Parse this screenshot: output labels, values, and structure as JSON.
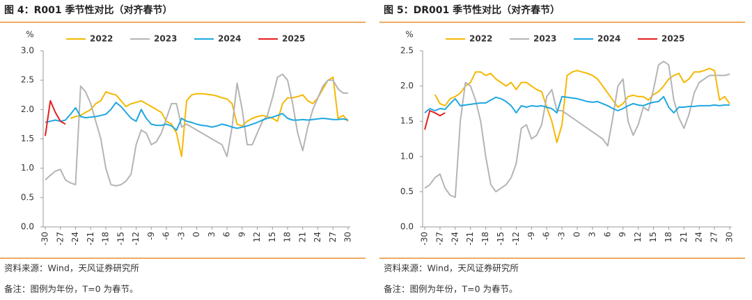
{
  "chart_data": [
    {
      "type": "line",
      "title": "图 4：R001 季节性对比（对齐春节）",
      "y_label": "%",
      "source": "资料来源：Wind，天风证券研究所",
      "note": "备注：图例为年份，T=0 为春节。",
      "x": [
        -30,
        -29,
        -28,
        -27,
        -26,
        -25,
        -24,
        -23,
        -22,
        -21,
        -20,
        -19,
        -18,
        -17,
        -16,
        -15,
        -14,
        -13,
        -12,
        -11,
        -10,
        -9,
        -8,
        -7,
        -6,
        -5,
        -4,
        -3,
        -2,
        -1,
        0,
        1,
        2,
        3,
        4,
        5,
        6,
        7,
        8,
        9,
        10,
        11,
        12,
        13,
        14,
        15,
        16,
        17,
        18,
        19,
        20,
        21,
        22,
        23,
        24,
        25,
        26,
        27,
        28,
        29,
        30
      ],
      "xlim": [
        -30,
        30
      ],
      "xticks": [
        -30,
        -27,
        -24,
        -21,
        -18,
        -15,
        -12,
        -9,
        -6,
        -3,
        0,
        3,
        6,
        9,
        12,
        15,
        18,
        21,
        24,
        27,
        30
      ],
      "ylim": [
        0,
        3
      ],
      "yticks": [
        {
          "value": 0,
          "label": "0.0"
        },
        0.5,
        {
          "value": 1,
          "label": "1.0"
        },
        1.5,
        {
          "value": 2,
          "label": "2.0"
        },
        2.5,
        {
          "value": 3,
          "label": "3.0"
        }
      ],
      "series": [
        {
          "name": "2022",
          "color": "#f5b800",
          "values": [
            null,
            null,
            null,
            null,
            null,
            1.85,
            1.88,
            1.9,
            1.95,
            2.0,
            2.1,
            2.15,
            2.3,
            2.27,
            2.25,
            2.15,
            2.05,
            2.1,
            2.12,
            2.15,
            2.1,
            2.05,
            2.0,
            1.95,
            1.8,
            1.75,
            1.6,
            1.2,
            2.15,
            2.25,
            2.27,
            2.27,
            2.26,
            2.25,
            2.23,
            2.2,
            2.18,
            2.1,
            1.75,
            1.72,
            1.8,
            1.85,
            1.88,
            1.9,
            1.88,
            1.85,
            1.8,
            2.1,
            2.2,
            2.2,
            2.22,
            2.25,
            2.15,
            2.1,
            2.2,
            2.35,
            2.5,
            2.55,
            1.85,
            1.9,
            1.8
          ]
        },
        {
          "name": "2023",
          "color": "#b4b4b4",
          "values": [
            0.8,
            0.88,
            0.95,
            0.98,
            0.8,
            0.75,
            0.72,
            2.4,
            2.3,
            2.1,
            1.8,
            1.5,
            1.0,
            0.72,
            0.7,
            0.72,
            0.78,
            0.9,
            1.4,
            1.65,
            1.6,
            1.4,
            1.45,
            1.6,
            1.85,
            2.1,
            2.1,
            1.7,
            1.75,
            1.7,
            1.65,
            1.6,
            1.55,
            1.5,
            1.45,
            1.4,
            1.2,
            1.7,
            2.45,
            2.0,
            1.4,
            1.4,
            1.6,
            1.8,
            1.9,
            2.2,
            2.55,
            2.6,
            2.5,
            2.1,
            1.6,
            1.3,
            1.7,
            2.0,
            2.2,
            2.4,
            2.5,
            2.5,
            2.35,
            2.28,
            2.28
          ]
        },
        {
          "name": "2024",
          "color": "#1ea7e1",
          "values": [
            1.78,
            1.8,
            1.82,
            1.8,
            1.82,
            1.92,
            2.03,
            1.88,
            1.86,
            1.87,
            1.88,
            1.9,
            1.92,
            2.0,
            2.12,
            2.05,
            1.95,
            1.85,
            1.8,
            2.0,
            1.85,
            1.75,
            1.73,
            1.73,
            1.75,
            1.72,
            1.65,
            1.85,
            1.8,
            1.78,
            1.75,
            1.73,
            1.72,
            1.7,
            1.72,
            1.75,
            1.73,
            1.7,
            1.68,
            1.7,
            1.72,
            1.75,
            1.78,
            1.82,
            1.85,
            1.87,
            1.9,
            1.93,
            1.85,
            1.82,
            1.82,
            1.83,
            1.82,
            1.83,
            1.84,
            1.85,
            1.84,
            1.83,
            1.83,
            1.84,
            1.82
          ]
        },
        {
          "name": "2025",
          "color": "#e41f1f",
          "values": [
            1.55,
            2.15,
            1.95,
            1.8,
            1.75,
            null,
            null,
            null,
            null,
            null,
            null,
            null,
            null,
            null,
            null,
            null,
            null,
            null,
            null,
            null,
            null,
            null,
            null,
            null,
            null,
            null,
            null,
            null,
            null,
            null,
            null,
            null,
            null,
            null,
            null,
            null,
            null,
            null,
            null,
            null,
            null,
            null,
            null,
            null,
            null,
            null,
            null,
            null,
            null,
            null,
            null,
            null,
            null,
            null,
            null,
            null,
            null,
            null,
            null,
            null,
            null
          ]
        }
      ]
    },
    {
      "type": "line",
      "title": "图 5：DR001 季节性对比（对齐春节）",
      "y_label": "%",
      "source": "资料来源：Wind，天风证券研究所",
      "note": "备注：图例为年份，T=0 为春节。",
      "x": [
        -30,
        -29,
        -28,
        -27,
        -26,
        -25,
        -24,
        -23,
        -22,
        -21,
        -20,
        -19,
        -18,
        -17,
        -16,
        -15,
        -14,
        -13,
        -12,
        -11,
        -10,
        -9,
        -8,
        -7,
        -6,
        -5,
        -4,
        -3,
        -2,
        -1,
        0,
        1,
        2,
        3,
        4,
        5,
        6,
        7,
        8,
        9,
        10,
        11,
        12,
        13,
        14,
        15,
        16,
        17,
        18,
        19,
        20,
        21,
        22,
        23,
        24,
        25,
        26,
        27,
        28,
        29,
        30
      ],
      "xlim": [
        -30,
        30
      ],
      "xticks": [
        -30,
        -27,
        -24,
        -21,
        -18,
        -15,
        -12,
        -9,
        -6,
        -3,
        0,
        3,
        6,
        9,
        12,
        15,
        18,
        21,
        24,
        27,
        30
      ],
      "ylim": [
        0,
        2.5
      ],
      "yticks": [
        {
          "value": 0,
          "label": "0.0"
        },
        0.5,
        {
          "value": 1,
          "label": "1.0"
        },
        1.5,
        {
          "value": 2,
          "label": "2.0"
        },
        2.5
      ],
      "series": [
        {
          "name": "2022",
          "color": "#f5b800",
          "values": [
            null,
            null,
            1.88,
            1.75,
            1.72,
            1.82,
            1.85,
            1.9,
            2.0,
            2.05,
            2.2,
            2.2,
            2.15,
            2.18,
            2.1,
            2.05,
            2.0,
            2.05,
            1.95,
            2.05,
            2.05,
            2.0,
            1.95,
            1.92,
            1.7,
            1.5,
            1.2,
            1.45,
            2.15,
            2.2,
            2.22,
            2.2,
            2.18,
            2.15,
            2.1,
            2.0,
            1.9,
            1.8,
            1.7,
            1.75,
            1.85,
            1.87,
            1.85,
            1.85,
            1.8,
            1.88,
            1.92,
            2.0,
            2.1,
            2.15,
            2.18,
            2.05,
            2.1,
            2.2,
            2.2,
            2.22,
            2.25,
            2.22,
            1.8,
            1.85,
            1.75
          ]
        },
        {
          "name": "2023",
          "color": "#b4b4b4",
          "values": [
            0.55,
            0.6,
            0.7,
            0.75,
            0.55,
            0.45,
            0.42,
            1.5,
            2.05,
            2.0,
            1.8,
            1.5,
            1.0,
            0.6,
            0.5,
            0.55,
            0.6,
            0.7,
            0.9,
            1.4,
            1.45,
            1.25,
            1.3,
            1.45,
            1.85,
            1.95,
            1.65,
            1.65,
            1.6,
            1.55,
            1.5,
            1.45,
            1.4,
            1.35,
            1.3,
            1.25,
            1.15,
            1.55,
            2.0,
            2.1,
            1.5,
            1.3,
            1.45,
            1.7,
            1.65,
            1.95,
            2.3,
            2.35,
            2.3,
            1.8,
            1.55,
            1.4,
            1.6,
            1.9,
            2.05,
            2.1,
            2.15,
            2.15,
            2.15,
            2.15,
            2.17
          ]
        },
        {
          "name": "2024",
          "color": "#1ea7e1",
          "values": [
            1.62,
            1.68,
            1.65,
            1.68,
            1.67,
            1.75,
            1.82,
            1.72,
            1.73,
            1.74,
            1.75,
            1.76,
            1.76,
            1.8,
            1.84,
            1.82,
            1.78,
            1.72,
            1.62,
            1.72,
            1.7,
            1.72,
            1.71,
            1.72,
            1.7,
            1.68,
            1.62,
            1.85,
            1.84,
            1.83,
            1.82,
            1.8,
            1.78,
            1.77,
            1.78,
            1.75,
            1.72,
            1.68,
            1.65,
            1.68,
            1.72,
            1.75,
            1.73,
            1.72,
            1.75,
            1.77,
            1.78,
            1.85,
            1.7,
            1.62,
            1.7,
            1.7,
            1.71,
            1.71,
            1.72,
            1.72,
            1.72,
            1.73,
            1.72,
            1.73,
            1.73
          ]
        },
        {
          "name": "2025",
          "color": "#e41f1f",
          "values": [
            1.38,
            1.65,
            1.62,
            1.58,
            1.62,
            null,
            null,
            null,
            null,
            null,
            null,
            null,
            null,
            null,
            null,
            null,
            null,
            null,
            null,
            null,
            null,
            null,
            null,
            null,
            null,
            null,
            null,
            null,
            null,
            null,
            null,
            null,
            null,
            null,
            null,
            null,
            null,
            null,
            null,
            null,
            null,
            null,
            null,
            null,
            null,
            null,
            null,
            null,
            null,
            null,
            null,
            null,
            null,
            null,
            null,
            null,
            null,
            null,
            null,
            null,
            null
          ]
        }
      ]
    }
  ]
}
